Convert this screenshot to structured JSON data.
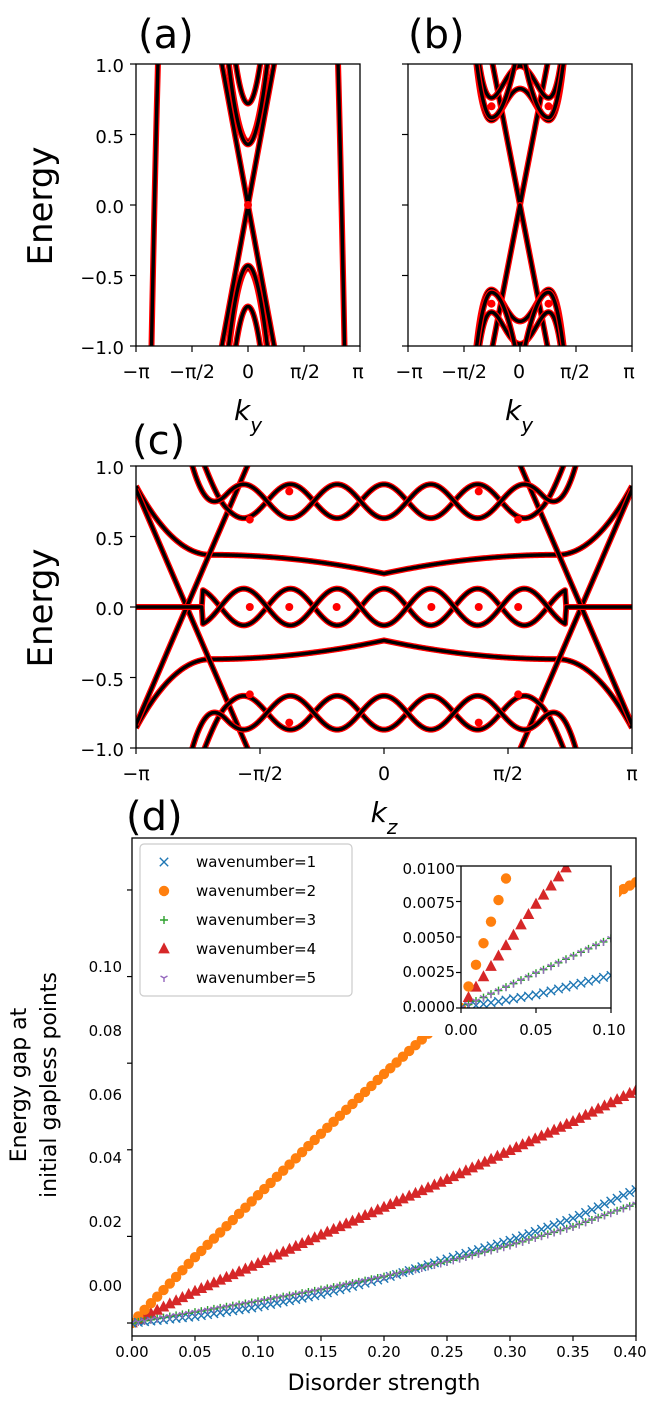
{
  "chart_data": [
    {
      "panel": "(a)",
      "type": "line",
      "ylabel": "Energy",
      "xlabel": "k_y",
      "xlim": [
        -3.14159,
        3.14159
      ],
      "ylim": [
        -1.0,
        1.0
      ],
      "x_tick_labels": [
        "−π",
        "−π/2",
        "0",
        "π/2",
        "π"
      ],
      "y_tick_labels": [
        "−1.0",
        "−0.5",
        "0.0",
        "0.5",
        "1.0"
      ],
      "series_colors": [
        "#000000",
        "#ff0000"
      ],
      "bands": [
        {
          "shape": "dirac",
          "v": 0.62,
          "gap": 0.0
        },
        {
          "shape": "band",
          "min": 0.45,
          "v": 0.62
        },
        {
          "shape": "band",
          "min": 0.72,
          "v": 0.62
        },
        {
          "shape": "band",
          "min": -0.45,
          "v": 0.62
        },
        {
          "shape": "band",
          "min": -0.72,
          "v": 0.62
        }
      ],
      "gapless_points": [
        [
          0.0,
          0.0
        ]
      ]
    },
    {
      "panel": "(b)",
      "type": "line",
      "xlabel": "k_y",
      "xlim": [
        -3.14159,
        3.14159
      ],
      "ylim": [
        -1.0,
        1.0
      ],
      "x_tick_labels": [
        "−π",
        "−π/2",
        "0",
        "π/2",
        "π"
      ],
      "series_colors": [
        "#000000",
        "#ff0000"
      ],
      "bands": [
        {
          "shape": "dirac",
          "v": 0.6,
          "gap": 0.0
        },
        {
          "shape": "wshape",
          "min": 0.55,
          "k0": 0.8
        },
        {
          "shape": "wshape",
          "min": 0.72,
          "k0": 0.8
        },
        {
          "shape": "wshape",
          "min": -0.55,
          "k0": 0.8
        },
        {
          "shape": "wshape",
          "min": -0.72,
          "k0": 0.8
        }
      ],
      "gapless_points": [
        [
          -0.8,
          0.7
        ],
        [
          0.8,
          0.7
        ],
        [
          -0.8,
          -0.7
        ],
        [
          0.8,
          -0.7
        ]
      ]
    },
    {
      "panel": "(c)",
      "type": "line",
      "ylabel": "Energy",
      "xlabel": "k_z",
      "xlim": [
        -3.14159,
        3.14159
      ],
      "ylim": [
        -1.0,
        1.0
      ],
      "x_tick_labels": [
        "−π",
        "−π/2",
        "0",
        "π/2",
        "π"
      ],
      "y_tick_labels": [
        "−1.0",
        "−0.5",
        "0.0",
        "0.5",
        "1.0"
      ],
      "series_colors": [
        "#000000",
        "#ff0000"
      ],
      "gapless_points": [
        [
          -1.7,
          0.0
        ],
        [
          -1.2,
          0.0
        ],
        [
          -0.6,
          0.0
        ],
        [
          0.6,
          0.0
        ],
        [
          1.2,
          0.0
        ],
        [
          1.7,
          0.0
        ],
        [
          -1.7,
          0.62
        ],
        [
          1.7,
          0.62
        ],
        [
          -1.7,
          -0.62
        ],
        [
          1.7,
          -0.62
        ],
        [
          -1.2,
          0.82
        ],
        [
          1.2,
          0.82
        ],
        [
          -1.2,
          -0.82
        ],
        [
          1.2,
          -0.82
        ]
      ]
    },
    {
      "panel": "(d)",
      "type": "scatter",
      "xlabel": "Disorder strength",
      "ylabel_lines": [
        "Energy gap at",
        "initial gapless points"
      ],
      "xlim": [
        0.0,
        0.4
      ],
      "ylim": [
        -0.003,
        0.112
      ],
      "x_tick_labels": [
        "0.00",
        "0.05",
        "0.10",
        "0.15",
        "0.20",
        "0.25",
        "0.30",
        "0.35",
        "0.40"
      ],
      "y_tick_labels": [
        "0.00",
        "0.02",
        "0.04",
        "0.06",
        "0.08",
        "0.10"
      ],
      "legend_position": "top-left",
      "series": [
        {
          "name": "wavenumber=1",
          "marker": "x",
          "color": "#1f77b4",
          "x": [
            0.0,
            0.05,
            0.1,
            0.15,
            0.2,
            0.25,
            0.3,
            0.35,
            0.4
          ],
          "values": [
            0.0,
            0.0015,
            0.0037,
            0.0066,
            0.0103,
            0.0148,
            0.0191,
            0.0242,
            0.0308
          ]
        },
        {
          "name": "wavenumber=2",
          "marker": "o",
          "color": "#ff7f0e",
          "x": [
            0.0,
            0.05,
            0.1,
            0.15,
            0.2,
            0.25,
            0.3,
            0.35,
            0.4
          ],
          "values": [
            0.0,
            0.0152,
            0.0295,
            0.0437,
            0.0575,
            0.0708,
            0.0832,
            0.0939,
            0.1018
          ]
        },
        {
          "name": "wavenumber=3",
          "marker": "+",
          "color": "#2ca02c",
          "x": [
            0.0,
            0.05,
            0.1,
            0.15,
            0.2,
            0.25,
            0.3,
            0.35,
            0.4
          ],
          "values": [
            0.0,
            0.0025,
            0.005,
            0.0077,
            0.0107,
            0.0141,
            0.0179,
            0.0222,
            0.0275
          ]
        },
        {
          "name": "wavenumber=4",
          "marker": "^",
          "color": "#d62728",
          "x": [
            0.0,
            0.05,
            0.1,
            0.15,
            0.2,
            0.25,
            0.3,
            0.35,
            0.4
          ],
          "values": [
            0.0,
            0.0073,
            0.0137,
            0.0203,
            0.0267,
            0.0331,
            0.0398,
            0.0465,
            0.0537
          ]
        },
        {
          "name": "wavenumber=5",
          "marker": "Y",
          "color": "#9467bd",
          "x": [
            0.0,
            0.05,
            0.1,
            0.15,
            0.2,
            0.25,
            0.3,
            0.35,
            0.4
          ],
          "values": [
            0.0,
            0.0025,
            0.005,
            0.0077,
            0.0107,
            0.0141,
            0.0179,
            0.0222,
            0.0275
          ]
        }
      ],
      "inset": {
        "xlim": [
          0.0,
          0.1
        ],
        "ylim": [
          0.0,
          0.01
        ],
        "x_tick_labels": [
          "0.00",
          "0.05",
          "0.10"
        ],
        "y_tick_labels": [
          "0.0000",
          "0.0025",
          "0.0050",
          "0.0075",
          "0.0100"
        ]
      }
    }
  ]
}
